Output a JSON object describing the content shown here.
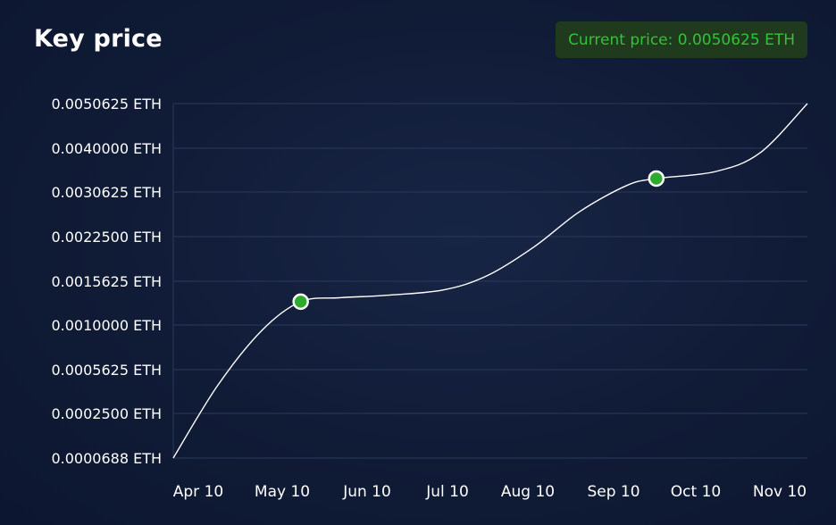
{
  "header": {
    "title": "Key price",
    "current_price": "Current price: 0.0050625 ETH"
  },
  "colors": {
    "accent_green": "#2faa2f",
    "badge_bg": "#1f3a1c",
    "badge_text": "#33c23a",
    "grid": "#2a3a5c",
    "line": "#ffffff"
  },
  "chart_data": {
    "type": "line",
    "title": "Key price",
    "xlabel": "",
    "ylabel": "",
    "y_tick_labels": [
      "0.0000688 ETH",
      "0.0002500 ETH",
      "0.0005625 ETH",
      "0.0010000 ETH",
      "0.0015625 ETH",
      "0.0022500 ETH",
      "0.0030625 ETH",
      "0.0040000 ETH",
      "0.0050625 ETH"
    ],
    "x_tick_labels": [
      "Apr 10",
      "May 10",
      "Jun 10",
      "Jul 10",
      "Aug 10",
      "Sep 10",
      "Oct 10",
      "Nov 10"
    ],
    "grid": true,
    "series": [
      {
        "x": [
          "2023-04-10",
          "2023-04-25",
          "2023-05-10",
          "2023-05-23",
          "2023-06-05",
          "2023-06-20",
          "2023-07-10",
          "2023-07-25",
          "2023-08-10",
          "2023-08-25",
          "2023-09-10",
          "2023-09-20",
          "2023-10-10",
          "2023-10-25",
          "2023-11-10"
        ],
        "y": [
          6.88e-05,
          0.00045,
          0.00095,
          0.0013,
          0.00135,
          0.00138,
          0.00145,
          0.00165,
          0.0021,
          0.0027,
          0.0032,
          0.00335,
          0.0035,
          0.0039,
          0.0050625
        ]
      }
    ],
    "highlighted_points": [
      {
        "x": "2023-05-23",
        "y": 0.0013
      },
      {
        "x": "2023-09-20",
        "y": 0.00335
      }
    ]
  }
}
